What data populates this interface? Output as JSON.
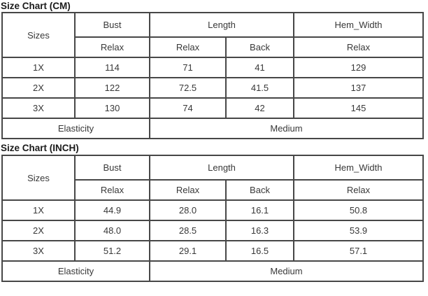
{
  "page": {
    "background": "#ffffff",
    "border_color": "#474747",
    "cell_text_color": "#383838",
    "title_color": "#1b1b1b"
  },
  "tables": [
    {
      "title": "Size Chart (CM)",
      "header": {
        "sizes": "Sizes",
        "groups": [
          "Bust",
          "Length",
          "Hem_Width"
        ],
        "sub": [
          "Relax",
          "Relax",
          "Back",
          "Relax"
        ]
      },
      "rows": [
        {
          "size": "1X",
          "bust_relax": "114",
          "length_relax": "71",
          "length_back": "41",
          "hem_relax": "129"
        },
        {
          "size": "2X",
          "bust_relax": "122",
          "length_relax": "72.5",
          "length_back": "41.5",
          "hem_relax": "137"
        },
        {
          "size": "3X",
          "bust_relax": "130",
          "length_relax": "74",
          "length_back": "42",
          "hem_relax": "145"
        }
      ],
      "footer": {
        "label": "Elasticity",
        "value": "Medium"
      }
    },
    {
      "title": "Size Chart (INCH)",
      "header": {
        "sizes": "Sizes",
        "groups": [
          "Bust",
          "Length",
          "Hem_Width"
        ],
        "sub": [
          "Relax",
          "Relax",
          "Back",
          "Relax"
        ]
      },
      "rows": [
        {
          "size": "1X",
          "bust_relax": "44.9",
          "length_relax": "28.0",
          "length_back": "16.1",
          "hem_relax": "50.8"
        },
        {
          "size": "2X",
          "bust_relax": "48.0",
          "length_relax": "28.5",
          "length_back": "16.3",
          "hem_relax": "53.9"
        },
        {
          "size": "3X",
          "bust_relax": "51.2",
          "length_relax": "29.1",
          "length_back": "16.5",
          "hem_relax": "57.1"
        }
      ],
      "footer": {
        "label": "Elasticity",
        "value": "Medium"
      }
    }
  ],
  "chart_data": [
    {
      "type": "table",
      "title": "Size Chart (CM)",
      "columns": [
        "Sizes",
        "Bust Relax",
        "Length Relax",
        "Length Back",
        "Hem_Width Relax"
      ],
      "rows": [
        [
          "1X",
          114,
          71,
          41,
          129
        ],
        [
          "2X",
          122,
          72.5,
          41.5,
          137
        ],
        [
          "3X",
          130,
          74,
          42,
          145
        ]
      ],
      "footer_row": [
        "Elasticity",
        "Medium"
      ]
    },
    {
      "type": "table",
      "title": "Size Chart (INCH)",
      "columns": [
        "Sizes",
        "Bust Relax",
        "Length Relax",
        "Length Back",
        "Hem_Width Relax"
      ],
      "rows": [
        [
          "1X",
          44.9,
          28.0,
          16.1,
          50.8
        ],
        [
          "2X",
          48.0,
          28.5,
          16.3,
          53.9
        ],
        [
          "3X",
          51.2,
          29.1,
          16.5,
          57.1
        ]
      ],
      "footer_row": [
        "Elasticity",
        "Medium"
      ]
    }
  ]
}
